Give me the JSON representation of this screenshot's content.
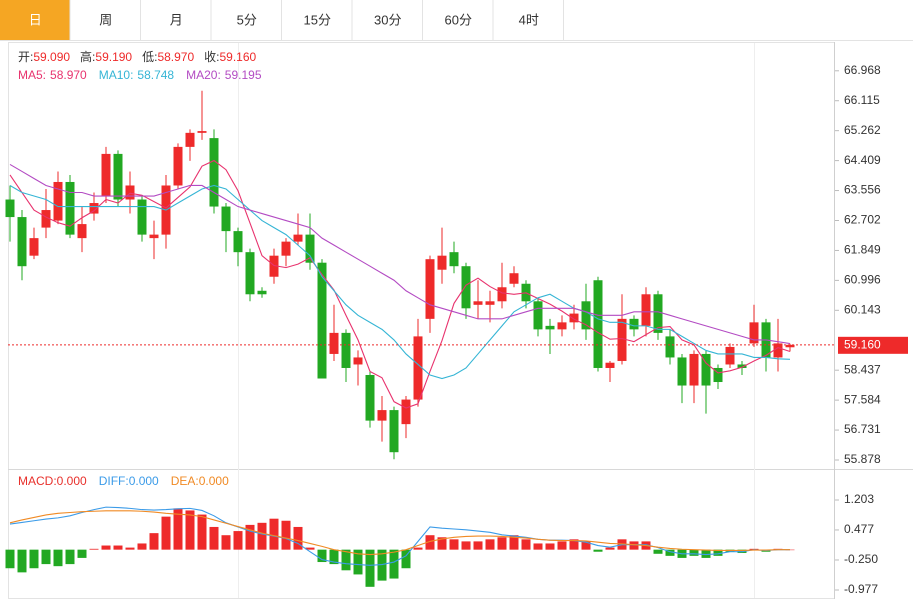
{
  "tabs": [
    "日",
    "周",
    "月",
    "5分",
    "15分",
    "30分",
    "60分",
    "4时"
  ],
  "chart_data": [
    {
      "type": "candlestick",
      "ohlc_legend": [
        {
          "label": "开:",
          "value": "59.090"
        },
        {
          "label": "高:",
          "value": "59.190"
        },
        {
          "label": "低:",
          "value": "58.970"
        },
        {
          "label": "收:",
          "value": "59.160"
        }
      ],
      "up_color": "#ee2a2a",
      "down_color": "#22a822",
      "open": [
        63.3,
        62.8,
        61.7,
        62.5,
        62.7,
        63.8,
        62.2,
        62.9,
        63.4,
        64.6,
        63.3,
        63.3,
        62.2,
        62.3,
        63.7,
        64.8,
        65.2,
        65.05,
        63.1,
        62.4,
        61.8,
        60.7,
        61.1,
        61.7,
        62.1,
        62.3,
        61.5,
        58.9,
        59.5,
        58.6,
        58.3,
        57.0,
        57.3,
        56.9,
        57.6,
        59.9,
        61.3,
        61.8,
        61.4,
        60.3,
        60.3,
        60.4,
        60.9,
        60.9,
        60.4,
        59.7,
        59.6,
        59.8,
        60.4,
        61.0,
        58.5,
        58.7,
        59.9,
        59.7,
        60.6,
        59.4,
        58.8,
        58.0,
        58.9,
        58.5,
        58.6,
        58.6,
        59.2,
        59.8,
        58.8,
        59.09
      ],
      "high": [
        63.7,
        63.0,
        62.5,
        63.6,
        64.1,
        64.0,
        63.1,
        63.5,
        64.8,
        64.7,
        64.1,
        63.4,
        62.7,
        64.0,
        64.9,
        65.3,
        66.4,
        65.3,
        63.2,
        62.5,
        61.9,
        60.8,
        61.9,
        62.2,
        62.9,
        62.9,
        61.6,
        60.3,
        59.6,
        59.0,
        58.4,
        57.7,
        57.4,
        57.7,
        59.9,
        61.7,
        62.5,
        62.1,
        61.5,
        61.0,
        60.7,
        61.5,
        61.4,
        61.0,
        60.5,
        59.9,
        60.0,
        60.3,
        60.9,
        61.1,
        58.7,
        60.6,
        60.0,
        60.8,
        60.7,
        59.6,
        58.9,
        59.0,
        59.0,
        58.6,
        59.2,
        58.7,
        60.3,
        59.9,
        59.9,
        59.19
      ],
      "low": [
        62.1,
        61.0,
        61.6,
        62.2,
        62.6,
        62.2,
        61.8,
        62.7,
        63.2,
        63.1,
        62.9,
        62.1,
        61.6,
        61.9,
        63.6,
        64.4,
        65.0,
        62.9,
        61.8,
        61.4,
        60.4,
        60.5,
        60.9,
        61.4,
        62.0,
        61.3,
        58.2,
        58.7,
        58.1,
        58.0,
        56.8,
        56.4,
        55.9,
        56.5,
        57.4,
        59.5,
        60.9,
        61.2,
        59.9,
        59.9,
        59.8,
        60.2,
        60.8,
        60.2,
        59.4,
        58.9,
        59.4,
        59.6,
        59.3,
        58.4,
        58.1,
        58.6,
        59.4,
        59.4,
        59.3,
        58.6,
        57.5,
        57.5,
        57.2,
        57.9,
        58.5,
        58.3,
        59.1,
        58.4,
        58.4,
        58.97
      ],
      "close": [
        62.8,
        61.4,
        62.2,
        63.0,
        63.8,
        62.3,
        62.6,
        63.2,
        64.6,
        63.3,
        63.7,
        62.3,
        62.3,
        63.7,
        64.8,
        65.2,
        65.25,
        63.1,
        62.4,
        61.8,
        60.6,
        60.6,
        61.7,
        62.1,
        62.3,
        61.5,
        58.2,
        59.5,
        58.5,
        58.8,
        57.0,
        57.3,
        56.1,
        57.6,
        59.4,
        61.6,
        61.7,
        61.4,
        60.2,
        60.4,
        60.4,
        60.8,
        61.2,
        60.4,
        59.6,
        59.6,
        59.8,
        60.05,
        59.6,
        58.5,
        58.65,
        59.9,
        59.6,
        60.6,
        59.5,
        58.8,
        58.0,
        58.9,
        58.0,
        58.1,
        59.1,
        58.5,
        59.8,
        58.8,
        59.2,
        59.16
      ],
      "series": [
        {
          "name": "MA5:",
          "last": "58.970",
          "color": "#e8336e",
          "values": [
            64.0,
            63.5,
            63.0,
            62.8,
            62.64,
            62.54,
            62.78,
            62.98,
            63.3,
            63.2,
            63.48,
            63.42,
            63.24,
            63.06,
            63.36,
            63.66,
            64.25,
            64.41,
            64.15,
            63.55,
            62.63,
            61.7,
            61.42,
            61.36,
            61.46,
            61.64,
            61.16,
            60.72,
            60.0,
            59.3,
            58.4,
            58.22,
            57.54,
            57.36,
            57.48,
            58.4,
            59.28,
            60.34,
            60.86,
            61.06,
            60.82,
            60.64,
            60.6,
            60.64,
            60.48,
            60.32,
            60.12,
            59.89,
            59.73,
            59.51,
            59.32,
            59.34,
            59.25,
            59.45,
            59.65,
            59.68,
            59.3,
            59.16,
            58.64,
            58.36,
            58.42,
            58.52,
            58.7,
            58.86,
            59.08,
            58.97
          ]
        },
        {
          "name": "MA10:",
          "last": "58.748",
          "color": "#35b5d5",
          "values": [
            63.7,
            63.5,
            63.4,
            63.3,
            63.1,
            63.1,
            63.1,
            63.1,
            63.1,
            63.1,
            63.1,
            63.1,
            63.1,
            63.0,
            63.2,
            63.4,
            63.6,
            63.7,
            63.6,
            63.3,
            63.0,
            62.7,
            62.5,
            62.3,
            62.0,
            61.7,
            61.1,
            60.7,
            60.3,
            60.0,
            59.8,
            59.6,
            59.3,
            58.9,
            58.6,
            58.3,
            58.2,
            58.3,
            58.5,
            58.9,
            59.3,
            59.7,
            60.1,
            60.3,
            60.5,
            60.6,
            60.4,
            60.2,
            60.1,
            59.9,
            59.8,
            59.8,
            59.7,
            59.7,
            59.6,
            59.6,
            59.4,
            59.2,
            59.0,
            58.9,
            58.9,
            58.9,
            58.8,
            58.8,
            58.76,
            58.748
          ]
        },
        {
          "name": "MA20:",
          "last": "59.195",
          "color": "#b34bc3",
          "values": [
            64.3,
            64.1,
            63.9,
            63.7,
            63.6,
            63.5,
            63.5,
            63.4,
            63.4,
            63.4,
            63.4,
            63.4,
            63.4,
            63.5,
            63.6,
            63.7,
            63.7,
            63.5,
            63.3,
            63.1,
            63.0,
            62.9,
            62.8,
            62.7,
            62.6,
            62.5,
            62.2,
            62.0,
            61.8,
            61.6,
            61.4,
            61.2,
            61.0,
            60.7,
            60.5,
            60.3,
            60.2,
            60.1,
            60.0,
            59.9,
            59.9,
            59.9,
            60.0,
            60.1,
            60.2,
            60.2,
            60.2,
            60.2,
            60.1,
            60.0,
            60.0,
            60.0,
            60.1,
            60.1,
            60.1,
            60.0,
            59.9,
            59.8,
            59.7,
            59.6,
            59.5,
            59.4,
            59.3,
            59.3,
            59.25,
            59.195
          ]
        }
      ],
      "ylim": [
        55.65,
        67.76
      ],
      "yticks": [
        {
          "value": 66.968,
          "label": "66.968"
        },
        66.115,
        65.262,
        64.409,
        63.556,
        62.702,
        61.849,
        60.996,
        60.143,
        58.437,
        57.584,
        56.731,
        55.878
      ],
      "last_price": {
        "value": 59.16,
        "label": "59.160"
      }
    },
    {
      "type": "macd",
      "name": "MACD:",
      "last": "0.000",
      "color": "#e8302b",
      "up_color": "#ee2a2a",
      "down_color": "#22a822",
      "values": [
        -0.45,
        -0.55,
        -0.45,
        -0.35,
        -0.4,
        -0.35,
        -0.2,
        0.02,
        0.1,
        0.1,
        0.05,
        0.15,
        0.4,
        0.8,
        1.0,
        0.95,
        0.85,
        0.55,
        0.35,
        0.45,
        0.6,
        0.65,
        0.75,
        0.7,
        0.55,
        0.05,
        -0.3,
        -0.35,
        -0.5,
        -0.6,
        -0.9,
        -0.75,
        -0.7,
        -0.45,
        0.05,
        0.35,
        0.3,
        0.25,
        0.2,
        0.2,
        0.25,
        0.3,
        0.35,
        0.25,
        0.15,
        0.15,
        0.2,
        0.25,
        0.2,
        -0.05,
        0.05,
        0.25,
        0.2,
        0.2,
        -0.1,
        -0.15,
        -0.2,
        -0.15,
        -0.2,
        -0.15,
        -0.05,
        -0.08,
        0.02,
        -0.05,
        0.02,
        0.0
      ],
      "series": [
        {
          "name": "DIFF:",
          "last": "0.000",
          "color": "#3b9be8",
          "values": [
            0.62,
            0.66,
            0.7,
            0.74,
            0.77,
            0.82,
            0.9,
            0.97,
            1.03,
            1.02,
            1.0,
            0.97,
            0.96,
            0.97,
            0.99,
            1.0,
            0.95,
            0.82,
            0.65,
            0.55,
            0.45,
            0.38,
            0.33,
            0.27,
            0.15,
            -0.05,
            -0.24,
            -0.3,
            -0.34,
            -0.36,
            -0.38,
            -0.36,
            -0.3,
            -0.15,
            0.2,
            0.55,
            0.52,
            0.5,
            0.48,
            0.45,
            0.42,
            0.36,
            0.33,
            0.3,
            0.25,
            0.23,
            0.23,
            0.22,
            0.18,
            0.1,
            0.06,
            0.12,
            0.12,
            0.12,
            0.05,
            -0.05,
            -0.1,
            -0.1,
            -0.12,
            -0.1,
            -0.05,
            -0.05,
            0.0,
            -0.02,
            0.0,
            0.0
          ]
        },
        {
          "name": "DEA:",
          "last": "0.000",
          "color": "#f08a24",
          "values": [
            0.65,
            0.72,
            0.78,
            0.84,
            0.88,
            0.9,
            0.92,
            0.93,
            0.94,
            0.94,
            0.94,
            0.93,
            0.91,
            0.88,
            0.86,
            0.84,
            0.8,
            0.72,
            0.64,
            0.56,
            0.48,
            0.4,
            0.34,
            0.28,
            0.22,
            0.15,
            0.08,
            0.0,
            -0.05,
            -0.1,
            -0.12,
            -0.1,
            -0.06,
            0.0,
            0.1,
            0.2,
            0.26,
            0.3,
            0.32,
            0.33,
            0.33,
            0.32,
            0.3,
            0.28,
            0.25,
            0.23,
            0.22,
            0.22,
            0.21,
            0.18,
            0.15,
            0.14,
            0.12,
            0.1,
            0.06,
            0.03,
            0.01,
            0.0,
            -0.01,
            -0.02,
            -0.02,
            -0.02,
            -0.01,
            -0.01,
            0.0,
            0.0
          ]
        }
      ],
      "ylim": [
        -1.171,
        1.881
      ],
      "yticks": [
        1.203,
        0.477,
        {
          "value": -0.25,
          "label": "-0.250"
        },
        -0.977
      ]
    }
  ]
}
